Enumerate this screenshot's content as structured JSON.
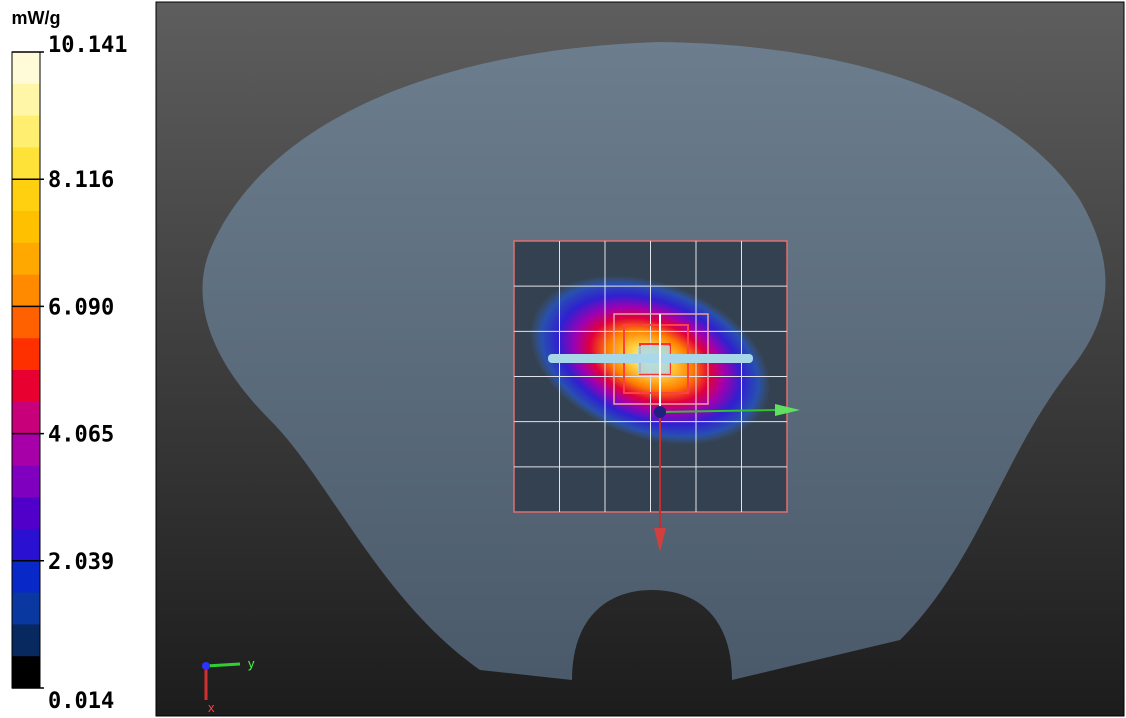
{
  "colorbar": {
    "unit": "mW/g",
    "labels": [
      "10.141",
      "8.116",
      "6.090",
      "4.065",
      "2.039",
      "0.014"
    ]
  },
  "axes": {
    "x": "x",
    "y": "y"
  }
}
